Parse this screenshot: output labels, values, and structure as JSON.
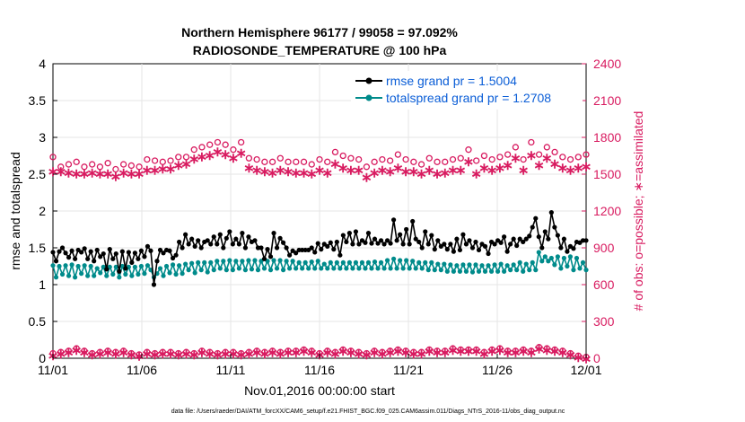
{
  "chart_data": {
    "type": "line",
    "title_line1": "Northern Hemisphere 96177 / 99058 = 97.092%",
    "title_line2": "RADIOSONDE_TEMPERATURE @ 100 hPa",
    "xlabel": "Nov.01,2016 00:00:00 start",
    "ylabel_left": "rmse and totalspread",
    "ylabel_right": "# of obs: o=possible; ∗=assimilated",
    "footer": "data file: /Users/raeder/DAI/ATM_forcXX/CAM6_setup/f.e21.FHIST_BGC.f09_025.CAM6assim.011/Diags_NTrS_2016-11/obs_diag_output.nc",
    "x_ticks": [
      "11/01",
      "11/06",
      "11/11",
      "11/16",
      "11/21",
      "11/26",
      "12/01"
    ],
    "y_left_ticks": [
      "0",
      "0.5",
      "1",
      "1.5",
      "2",
      "2.5",
      "3",
      "3.5",
      "4"
    ],
    "y_right_ticks": [
      "0",
      "300",
      "600",
      "900",
      "1200",
      "1500",
      "1800",
      "2100",
      "2400"
    ],
    "xlim_days": [
      0,
      30
    ],
    "ylim_left": [
      0,
      4
    ],
    "ylim_right": [
      0,
      2400
    ],
    "colors": {
      "rmse": "#000000",
      "spread": "#008b8b",
      "obs": "#d81b60",
      "axis": "#000000"
    },
    "series": [
      {
        "name": "rmse",
        "legend": "rmse grand pr = 1.5004",
        "values": [
          1.44,
          1.32,
          1.45,
          1.5,
          1.43,
          1.37,
          1.46,
          1.35,
          1.47,
          1.44,
          1.49,
          1.35,
          1.45,
          1.32,
          1.47,
          1.38,
          1.42,
          1.21,
          1.48,
          1.35,
          1.42,
          1.18,
          1.45,
          1.22,
          1.44,
          1.3,
          1.43,
          1.35,
          1.46,
          1.38,
          1.52,
          1.46,
          1.0,
          1.32,
          1.47,
          1.43,
          1.47,
          1.46,
          1.36,
          1.4,
          1.58,
          1.5,
          1.68,
          1.55,
          1.62,
          1.52,
          1.6,
          1.5,
          1.58,
          1.6,
          1.55,
          1.65,
          1.55,
          1.68,
          1.5,
          1.63,
          1.72,
          1.55,
          1.62,
          1.55,
          1.7,
          1.5,
          1.65,
          1.58,
          1.6,
          1.5,
          1.5,
          1.35,
          1.48,
          1.38,
          1.7,
          1.5,
          1.63,
          1.57,
          1.5,
          1.4,
          1.46,
          1.43,
          1.47,
          1.47,
          1.47,
          1.47,
          1.5,
          1.44,
          1.56,
          1.48,
          1.55,
          1.52,
          1.57,
          1.48,
          1.58,
          1.4,
          1.67,
          1.58,
          1.7,
          1.55,
          1.72,
          1.55,
          1.6,
          1.57,
          1.7,
          1.56,
          1.62,
          1.56,
          1.6,
          1.55,
          1.6,
          1.56,
          1.88,
          1.6,
          1.68,
          1.55,
          1.75,
          1.55,
          1.86,
          1.62,
          1.58,
          1.5,
          1.72,
          1.55,
          1.67,
          1.48,
          1.6,
          1.52,
          1.55,
          1.48,
          1.55,
          1.45,
          1.62,
          1.47,
          1.68,
          1.55,
          1.6,
          1.5,
          1.58,
          1.47,
          1.55,
          1.52,
          1.42,
          1.58,
          1.55,
          1.6,
          1.57,
          1.65,
          1.45,
          1.55,
          1.62,
          1.53,
          1.62,
          1.58,
          1.62,
          1.66,
          1.78,
          1.9,
          1.65,
          1.5,
          1.72,
          1.62,
          1.98,
          1.78,
          1.67,
          1.5,
          1.62,
          1.45,
          1.52,
          1.49,
          1.58,
          1.57,
          1.6,
          1.6
        ]
      },
      {
        "name": "totalspread",
        "legend": "totalspread grand pr = 1.2708",
        "values": [
          1.26,
          1.1,
          1.25,
          1.14,
          1.26,
          1.12,
          1.27,
          1.1,
          1.25,
          1.15,
          1.26,
          1.12,
          1.25,
          1.12,
          1.22,
          1.16,
          1.24,
          1.12,
          1.24,
          1.14,
          1.24,
          1.1,
          1.25,
          1.14,
          1.24,
          1.12,
          1.24,
          1.14,
          1.25,
          1.15,
          1.26,
          1.2,
          1.1,
          1.15,
          1.22,
          1.12,
          1.25,
          1.16,
          1.27,
          1.14,
          1.26,
          1.15,
          1.28,
          1.2,
          1.29,
          1.16,
          1.3,
          1.2,
          1.3,
          1.17,
          1.3,
          1.2,
          1.32,
          1.22,
          1.32,
          1.2,
          1.33,
          1.2,
          1.32,
          1.22,
          1.32,
          1.2,
          1.33,
          1.21,
          1.33,
          1.2,
          1.32,
          1.22,
          1.32,
          1.2,
          1.33,
          1.22,
          1.33,
          1.2,
          1.32,
          1.22,
          1.32,
          1.22,
          1.3,
          1.22,
          1.3,
          1.22,
          1.31,
          1.22,
          1.32,
          1.22,
          1.28,
          1.22,
          1.3,
          1.22,
          1.3,
          1.22,
          1.3,
          1.22,
          1.3,
          1.22,
          1.3,
          1.22,
          1.3,
          1.22,
          1.3,
          1.22,
          1.31,
          1.22,
          1.3,
          1.22,
          1.33,
          1.22,
          1.35,
          1.22,
          1.33,
          1.22,
          1.33,
          1.22,
          1.32,
          1.22,
          1.3,
          1.22,
          1.3,
          1.2,
          1.3,
          1.2,
          1.28,
          1.2,
          1.28,
          1.18,
          1.27,
          1.18,
          1.26,
          1.18,
          1.27,
          1.18,
          1.27,
          1.17,
          1.27,
          1.18,
          1.26,
          1.18,
          1.26,
          1.18,
          1.27,
          1.18,
          1.28,
          1.18,
          1.26,
          1.2,
          1.27,
          1.2,
          1.3,
          1.18,
          1.28,
          1.2,
          1.3,
          1.2,
          1.44,
          1.32,
          1.38,
          1.32,
          1.36,
          1.27,
          1.38,
          1.22,
          1.36,
          1.25,
          1.38,
          1.2,
          1.36,
          1.22,
          1.3,
          1.2
        ]
      }
    ],
    "obs_possible": [
      1640,
      1560,
      1580,
      1600,
      1560,
      1580,
      1560,
      1590,
      1540,
      1580,
      1570,
      1560,
      1620,
      1610,
      1600,
      1610,
      1640,
      1640,
      1700,
      1720,
      1740,
      1760,
      1740,
      1700,
      1760,
      1630,
      1620,
      1600,
      1600,
      1630,
      1600,
      1600,
      1600,
      1580,
      1620,
      1600,
      1680,
      1650,
      1630,
      1620,
      1560,
      1600,
      1620,
      1610,
      1660,
      1620,
      1600,
      1580,
      1630,
      1600,
      1600,
      1620,
      1630,
      1700,
      1610,
      1650,
      1620,
      1640,
      1660,
      1720,
      1620,
      1760,
      1660,
      1720,
      1680,
      1640,
      1620,
      1640,
      1660
    ],
    "obs_assimilated": [
      1530,
      1530,
      1520,
      1510,
      1510,
      1520,
      1510,
      1510,
      1490,
      1520,
      1510,
      1510,
      1540,
      1540,
      1550,
      1550,
      1580,
      1590,
      1630,
      1650,
      1660,
      1690,
      1670,
      1640,
      1680,
      1560,
      1540,
      1530,
      1520,
      1540,
      1530,
      1520,
      1520,
      1510,
      1540,
      1520,
      1590,
      1560,
      1540,
      1540,
      1480,
      1520,
      1540,
      1530,
      1560,
      1530,
      1530,
      1510,
      1540,
      1510,
      1520,
      1540,
      1540,
      1610,
      1510,
      1560,
      1540,
      1560,
      1580,
      1640,
      1540,
      1660,
      1580,
      1640,
      1590,
      1560,
      1540,
      1560,
      1570
    ],
    "obs_bottom_possible": [
      40,
      50,
      60,
      80,
      60,
      40,
      50,
      60,
      50,
      60,
      40,
      30,
      50,
      40,
      50,
      50,
      40,
      50,
      40,
      60,
      50,
      40,
      50,
      50,
      40,
      50,
      60,
      50,
      60,
      50,
      60,
      60,
      70,
      60,
      40,
      60,
      50,
      70,
      60,
      50,
      40,
      60,
      50,
      60,
      70,
      60,
      50,
      50,
      70,
      60,
      60,
      80,
      70,
      70,
      70,
      50,
      70,
      80,
      60,
      60,
      70,
      60,
      90,
      80,
      70,
      60,
      40,
      20,
      10
    ],
    "obs_bottom_assimilated": [
      30,
      45,
      55,
      75,
      55,
      35,
      45,
      55,
      45,
      55,
      35,
      25,
      45,
      35,
      45,
      45,
      35,
      45,
      35,
      55,
      45,
      35,
      45,
      45,
      35,
      45,
      55,
      45,
      55,
      45,
      55,
      55,
      65,
      55,
      35,
      55,
      45,
      65,
      55,
      45,
      35,
      55,
      45,
      55,
      65,
      55,
      45,
      45,
      65,
      55,
      55,
      75,
      65,
      65,
      65,
      45,
      65,
      75,
      55,
      55,
      65,
      55,
      85,
      75,
      65,
      55,
      35,
      15,
      5
    ]
  }
}
